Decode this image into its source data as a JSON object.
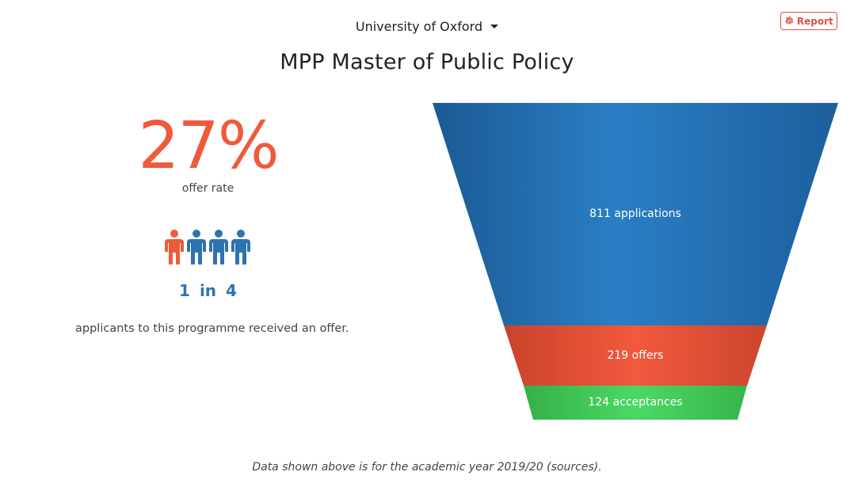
{
  "header": {
    "university": "University of Oxford",
    "report_label": "Report",
    "title": "MPP Master of Public Policy"
  },
  "stats": {
    "offer_rate": "27%",
    "offer_rate_label": "offer rate",
    "ratio_one": "1",
    "ratio_in": "in",
    "ratio_total": "4",
    "applicants_text": "applicants to this programme received an offer.",
    "people_icons": 4,
    "highlighted_icons": 1
  },
  "funnel": {
    "stages": [
      {
        "value": 811,
        "label": "811 applications",
        "color": "#1f6fb2"
      },
      {
        "value": 219,
        "label": "219 offers",
        "color": "#e5533a"
      },
      {
        "value": 124,
        "label": "124 acceptances",
        "color": "#43c95a"
      }
    ]
  },
  "footer": {
    "text_before": "Data shown above is for the academic year 2019/20 (",
    "link": "sources",
    "text_after": ")."
  },
  "colors": {
    "accent_orange": "#ef5a3c",
    "accent_blue": "#2f72b0",
    "report_red": "#d9534f"
  }
}
